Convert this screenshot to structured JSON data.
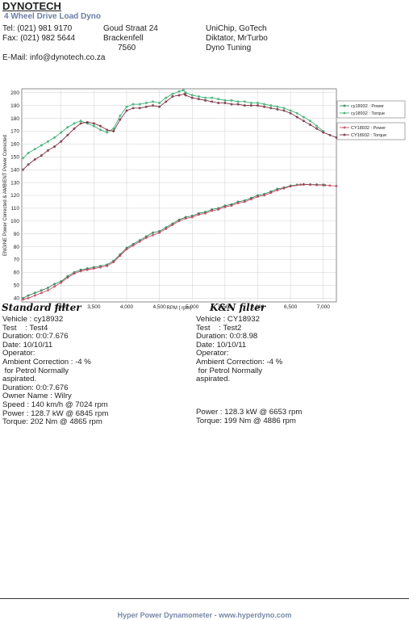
{
  "header": {
    "company": "DYNOTECH",
    "subtitle": "4 Wheel Drive Load Dyno",
    "tel": "Tel: (021) 981 9170",
    "fax": "Fax: (021) 982 5644",
    "email": "E-Mail: info@dynotech.co.za",
    "address": [
      "Goud Straat 24",
      "Brackenfell",
      "7560"
    ],
    "partners": [
      "UniChip, GoTech",
      "Diktator, MrTurbo",
      "Dyno Tuning"
    ]
  },
  "chart_data": {
    "type": "line",
    "xlabel": "RPM ( rpm)",
    "ylabel": "ENGINE Power Corrected & AMBIENT Power Corrected",
    "xlim": [
      2400,
      7200
    ],
    "ylim": [
      37,
      203
    ],
    "xticks": [
      3000,
      3500,
      4000,
      4500,
      5000,
      5500,
      6000,
      6500,
      7000
    ],
    "xtick_labels": [
      "3,000",
      "3,500",
      "4,000",
      "4,500",
      "5,000",
      "5,500",
      "6,000",
      "6,500",
      "7,000"
    ],
    "yticks": [
      40,
      50,
      60,
      70,
      80,
      90,
      100,
      110,
      120,
      130,
      140,
      150,
      160,
      170,
      180,
      190,
      200
    ],
    "grid": true,
    "legend_position": "right",
    "series": [
      {
        "name": "cy18932 : Power",
        "color": "#1f7a4a",
        "x": [
          2420,
          2500,
          2600,
          2700,
          2800,
          2900,
          3000,
          3100,
          3200,
          3300,
          3400,
          3500,
          3600,
          3700,
          3800,
          3900,
          4000,
          4100,
          4200,
          4300,
          4400,
          4500,
          4600,
          4700,
          4800,
          4900,
          5000,
          5100,
          5200,
          5300,
          5400,
          5500,
          5600,
          5700,
          5800,
          5900,
          6000,
          6100,
          6200,
          6300,
          6400,
          6500,
          6600,
          6700,
          6800,
          6900,
          7000,
          7024
        ],
        "y": [
          40,
          42,
          44,
          46,
          48,
          51,
          53,
          57,
          60,
          62,
          63,
          64,
          65,
          66,
          69,
          74,
          79,
          82,
          85,
          88,
          91,
          92,
          95,
          98,
          101,
          103,
          104,
          106,
          107,
          109,
          110,
          112,
          113,
          115,
          116,
          118,
          120,
          121,
          123,
          125,
          126,
          127.5,
          128.2,
          128.6,
          128.5,
          128.4,
          128.2,
          128
        ]
      },
      {
        "name": "cy18932 : Torque",
        "color": "#2aa866",
        "x": [
          2420,
          2500,
          2600,
          2700,
          2800,
          2900,
          3000,
          3100,
          3200,
          3300,
          3400,
          3500,
          3600,
          3700,
          3800,
          3900,
          4000,
          4100,
          4200,
          4300,
          4400,
          4500,
          4600,
          4700,
          4800,
          4865,
          4900,
          5000,
          5100,
          5200,
          5300,
          5400,
          5500,
          5600,
          5700,
          5800,
          5900,
          6000,
          6100,
          6200,
          6300,
          6400,
          6500,
          6600,
          6700,
          6800,
          6900,
          7000
        ],
        "y": [
          149,
          153,
          156,
          159,
          162,
          165,
          169,
          173,
          176,
          178,
          176,
          174,
          171,
          169,
          172,
          182,
          189,
          191,
          191,
          192,
          193,
          192,
          196,
          199,
          201,
          202,
          200,
          198,
          197,
          196,
          196,
          195,
          194,
          194,
          193,
          193,
          192,
          192,
          191,
          190,
          189,
          188,
          186,
          184,
          181,
          178,
          174,
          170
        ]
      },
      {
        "name": "CY18932 : Power",
        "color": "#c03a55",
        "x": [
          2420,
          2500,
          2600,
          2700,
          2800,
          2900,
          3000,
          3100,
          3200,
          3300,
          3400,
          3500,
          3600,
          3700,
          3800,
          3900,
          4000,
          4100,
          4200,
          4300,
          4400,
          4500,
          4600,
          4700,
          4800,
          4900,
          5000,
          5100,
          5200,
          5300,
          5400,
          5500,
          5600,
          5700,
          5800,
          5900,
          6000,
          6100,
          6200,
          6300,
          6400,
          6500,
          6653,
          6700,
          6800,
          6900,
          7000,
          7100,
          7200
        ],
        "y": [
          39,
          40,
          42,
          44,
          46,
          49,
          52,
          56,
          59,
          61,
          62,
          63,
          64,
          65,
          68,
          73,
          78,
          81,
          84,
          87,
          89,
          91,
          94,
          97,
          100,
          102,
          103,
          105,
          106,
          108,
          109,
          111,
          112,
          114,
          115,
          117,
          119,
          120,
          122,
          124,
          125.5,
          127,
          128.3,
          128.4,
          128.3,
          128.1,
          127.9,
          127.6,
          127.3
        ]
      },
      {
        "name": "CY18932 : Torque",
        "color": "#6e1d2e",
        "x": [
          2420,
          2500,
          2600,
          2700,
          2800,
          2900,
          3000,
          3100,
          3200,
          3300,
          3400,
          3500,
          3600,
          3700,
          3800,
          3900,
          4000,
          4100,
          4200,
          4300,
          4400,
          4500,
          4600,
          4700,
          4800,
          4886,
          4900,
          5000,
          5100,
          5200,
          5300,
          5400,
          5500,
          5600,
          5700,
          5800,
          5900,
          6000,
          6100,
          6200,
          6300,
          6400,
          6500,
          6600,
          6700,
          6800,
          6900,
          7000,
          7100,
          7200
        ],
        "y": [
          140,
          144,
          148,
          151,
          155,
          158,
          162,
          167,
          172,
          176,
          177,
          176,
          174,
          171,
          170,
          179,
          186,
          188,
          188,
          189,
          190,
          189,
          193,
          197,
          198,
          199,
          198,
          196,
          195,
          194,
          193,
          192,
          192,
          191,
          191,
          190,
          190,
          190,
          189,
          188,
          187,
          186,
          184,
          181,
          178,
          175,
          172,
          169,
          167,
          165
        ]
      }
    ]
  },
  "annotations": {
    "left_handwritten": "Standard filter",
    "right_handwritten": "K&N filter"
  },
  "left_info": [
    "Vehicle : cy18932",
    "Test    : Test4",
    "Duration: 0:0:7.676",
    "Date: 10/10/11",
    "Operator:",
    "Ambient Correction : -4 %",
    " for Petrol Normally",
    "aspirated.",
    "Duration: 0:0:7.676",
    "Owner Name : Wilry",
    "Speed : 140 km/h @ 7024 rpm",
    "Power : 128.7 kW @ 6845 rpm",
    "Torque: 202 Nm @ 4865 rpm"
  ],
  "right_info": [
    "Vehicle : CY18932",
    "Test    : Test2",
    "Duration: 0:0:8.98",
    "Date: 10/10/11",
    "Operator:",
    "Ambient Correction: -4 %",
    " for Petrol Normally",
    "aspirated."
  ],
  "right_results": [
    "Power : 128.3 kW @ 6653 rpm",
    "Torque: 199 Nm @ 4886 rpm"
  ],
  "footer": "Hyper Power Dynamometer - www.hyperdyno.com"
}
